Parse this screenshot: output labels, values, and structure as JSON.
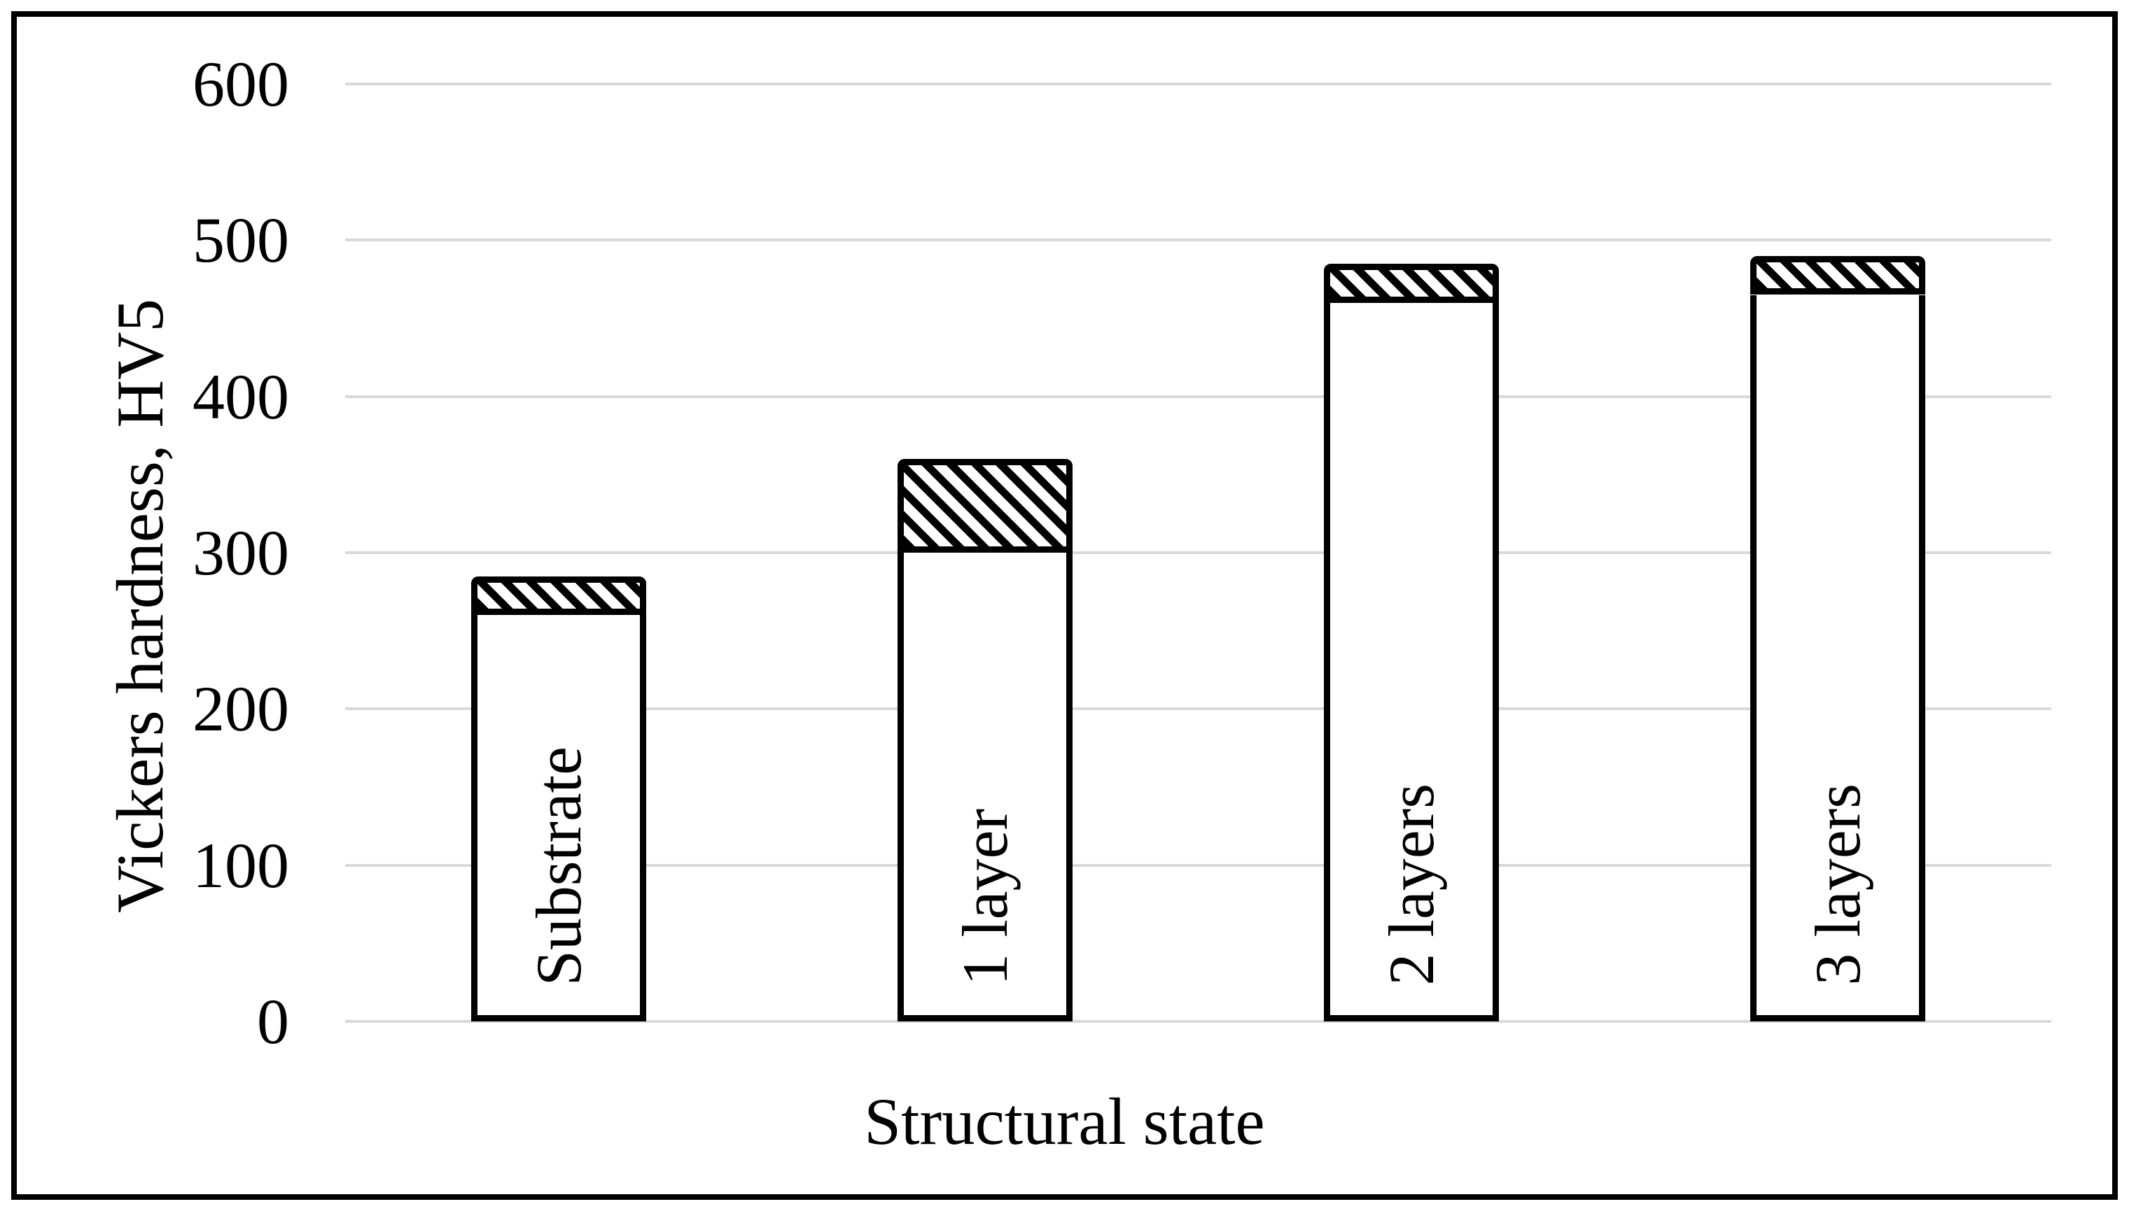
{
  "figure": {
    "background_color": "#ffffff",
    "border_color": "#000000",
    "text_color": "#000000"
  },
  "chart_data": {
    "type": "bar",
    "stacked": true,
    "title": "",
    "xlabel": "Structural state",
    "ylabel": "Vickers hardness, HV5",
    "categories": [
      "Substrate",
      "1 layer",
      "2 layers",
      "3 layers"
    ],
    "series": [
      {
        "name": "base-hardness-solid-white",
        "fill": "white",
        "values": [
          260,
          300,
          460,
          465
        ]
      },
      {
        "name": "top-increment-diagonal-hatch",
        "fill": "black-diagonal-hatch",
        "values": [
          25,
          60,
          25,
          25
        ]
      }
    ],
    "totals": [
      285,
      360,
      485,
      490
    ],
    "ylim": [
      0,
      600
    ],
    "yticks": [
      0,
      100,
      200,
      300,
      400,
      500,
      600
    ],
    "grid": "horizontal",
    "gridline_color": "#d9d9d9",
    "bar_border_color": "#000000",
    "bar_fill_color": "#ffffff",
    "legend": "none"
  }
}
